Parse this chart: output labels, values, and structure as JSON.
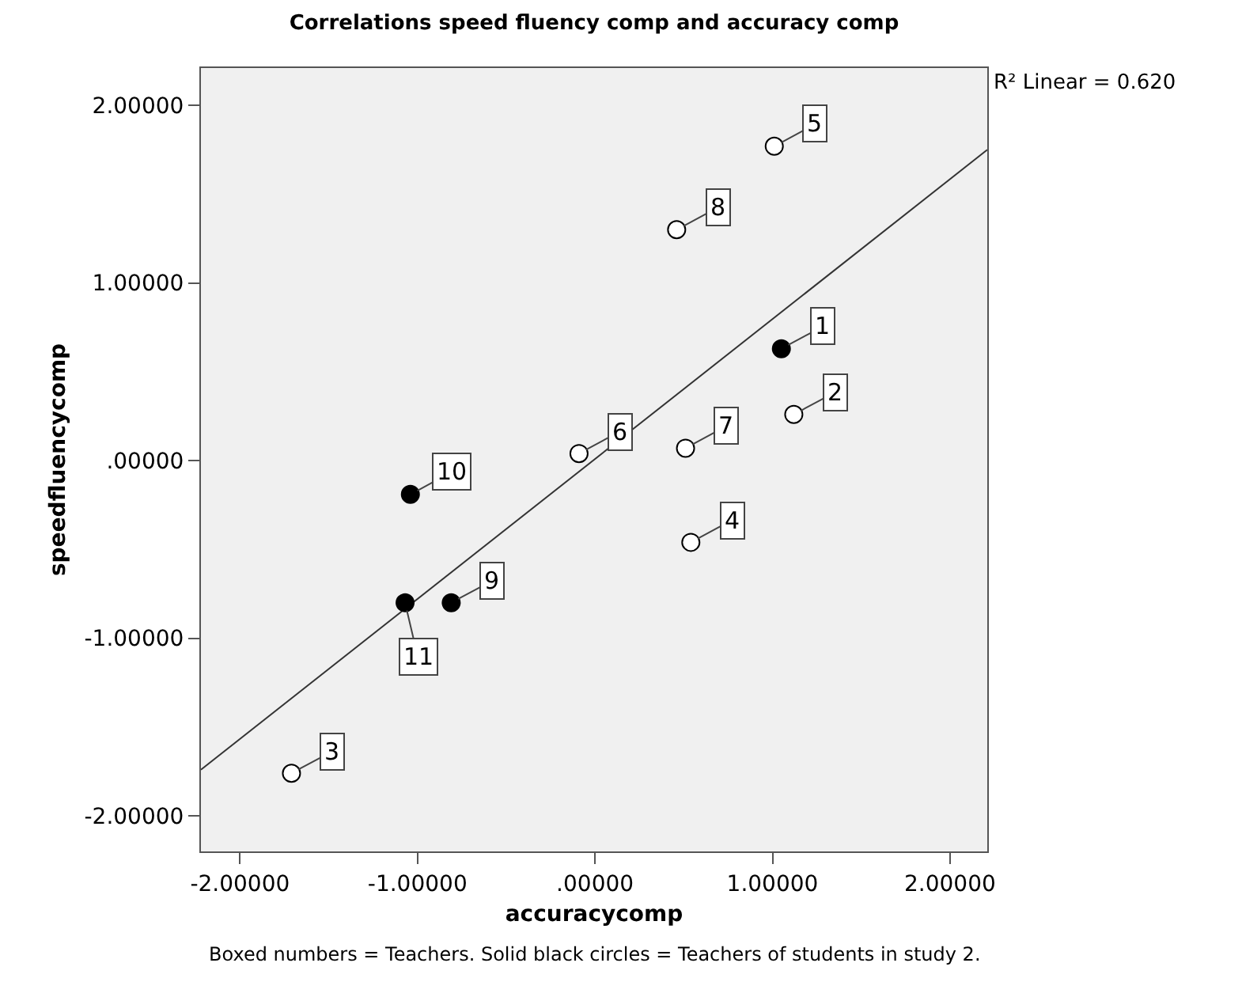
{
  "chart_data": {
    "type": "scatter",
    "title": "Correlations speed fluency comp and accuracy comp",
    "xlabel": "accuracycomp",
    "ylabel": "speedfluencycomp",
    "xlim": [
      -2.22,
      2.21
    ],
    "ylim": [
      -2.2,
      2.21
    ],
    "xticks": [
      {
        "value": -2,
        "label": "-2.00000"
      },
      {
        "value": -1,
        "label": "-1.00000"
      },
      {
        "value": 0,
        "label": ".00000"
      },
      {
        "value": 1,
        "label": "1.00000"
      },
      {
        "value": 2,
        "label": "2.00000"
      }
    ],
    "yticks": [
      {
        "value": -2,
        "label": "-2.00000"
      },
      {
        "value": -1,
        "label": "-1.00000"
      },
      {
        "value": 0,
        "label": ".00000"
      },
      {
        "value": 1,
        "label": "1.00000"
      },
      {
        "value": 2,
        "label": "2.00000"
      }
    ],
    "grid": false,
    "marker": "circle",
    "series": [
      {
        "color": "#ffffff",
        "x": [
          1.12,
          -1.71,
          0.54,
          1.01,
          -0.09,
          0.51,
          0.46
        ],
        "values": [
          0.26,
          -1.76,
          -0.46,
          1.77,
          0.04,
          0.07,
          1.3
        ]
      },
      {
        "color": "#000000",
        "x": [
          1.05,
          -0.81,
          -1.04,
          -1.07
        ],
        "values": [
          0.63,
          -0.8,
          -0.19,
          -0.8
        ]
      },
      {
        "type": "line",
        "marker": "none",
        "color": "#333333",
        "x": [
          -2.22,
          2.21
        ],
        "values": [
          -1.74,
          1.75
        ]
      }
    ],
    "annotations": [
      "R² Linear = 0.620",
      "Boxed numbers = Teachers. Solid black circles = Teachers of students in study 2.",
      {
        "text": "1",
        "x": 1.05,
        "y": 0.63
      },
      {
        "text": "2",
        "x": 1.12,
        "y": 0.26
      },
      {
        "text": "3",
        "x": -1.71,
        "y": -1.76
      },
      {
        "text": "4",
        "x": 0.54,
        "y": -0.46
      },
      {
        "text": "5",
        "x": 1.01,
        "y": 1.77
      },
      {
        "text": "6",
        "x": -0.09,
        "y": 0.04
      },
      {
        "text": "7",
        "x": 0.51,
        "y": 0.07
      },
      {
        "text": "8",
        "x": 0.46,
        "y": 1.3
      },
      {
        "text": "9",
        "x": -0.81,
        "y": -0.8
      },
      {
        "text": "10",
        "x": -1.04,
        "y": -0.19
      },
      {
        "text": "11",
        "x": -1.07,
        "y": -0.8
      }
    ]
  }
}
